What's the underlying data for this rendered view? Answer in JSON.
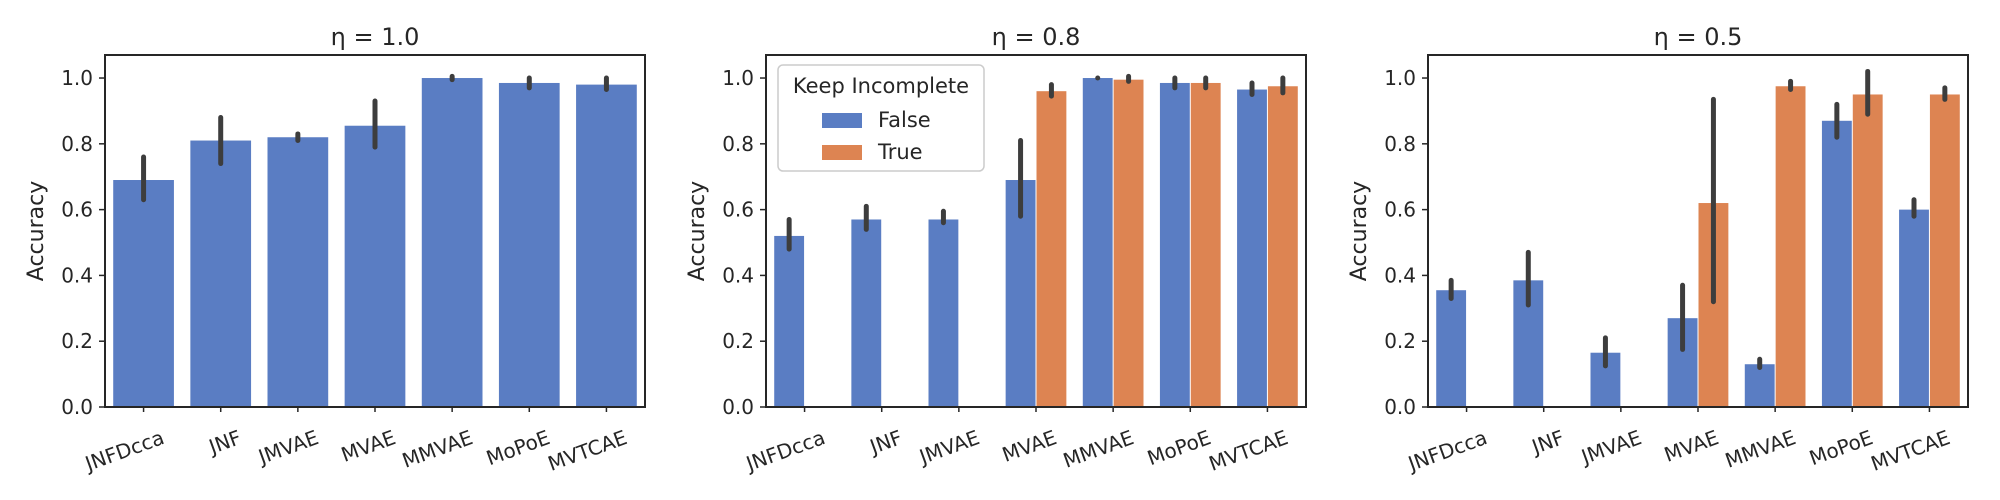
{
  "chart_data": [
    {
      "type": "bar",
      "title": "η = 1.0",
      "ylabel": "Accuracy",
      "xlabel": "",
      "ylim": [
        0,
        1.07
      ],
      "yticks": [
        "0.0",
        "0.2",
        "0.4",
        "0.6",
        "0.8",
        "1.0"
      ],
      "ytick_values": [
        0,
        0.2,
        0.4,
        0.6,
        0.8,
        1.0
      ],
      "categories": [
        "JNFDcca",
        "JNF",
        "JMVAE",
        "MVAE",
        "MMVAE",
        "MoPoE",
        "MVTCAE"
      ],
      "grid": false,
      "legend": null,
      "series": [
        {
          "color": "#5a7dc3",
          "values": [
            0.69,
            0.81,
            0.82,
            0.855,
            1.0,
            0.985,
            0.98
          ],
          "err_low": [
            0.63,
            0.74,
            0.81,
            0.79,
            0.995,
            0.97,
            0.965
          ],
          "err_high": [
            0.76,
            0.88,
            0.83,
            0.93,
            1.005,
            1.0,
            1.0
          ]
        }
      ]
    },
    {
      "type": "bar",
      "title": "η = 0.8",
      "ylabel": "Accuracy",
      "xlabel": "",
      "ylim": [
        0,
        1.07
      ],
      "yticks": [
        "0.0",
        "0.2",
        "0.4",
        "0.6",
        "0.8",
        "1.0"
      ],
      "ytick_values": [
        0,
        0.2,
        0.4,
        0.6,
        0.8,
        1.0
      ],
      "categories": [
        "JNFDcca",
        "JNF",
        "JMVAE",
        "MVAE",
        "MMVAE",
        "MoPoE",
        "MVTCAE"
      ],
      "grid": false,
      "legend": {
        "title": "Keep Incomplete",
        "placement": "top-left"
      },
      "series": [
        {
          "name": "False",
          "color": "#5a7dc3",
          "values": [
            0.52,
            0.57,
            0.57,
            0.69,
            1.0,
            0.985,
            0.965
          ],
          "err_low": [
            0.48,
            0.54,
            0.56,
            0.58,
            1.0,
            0.97,
            0.95
          ],
          "err_high": [
            0.57,
            0.61,
            0.595,
            0.81,
            1.0,
            1.0,
            0.985
          ]
        },
        {
          "name": "True",
          "color": "#dd8452",
          "values": [
            null,
            null,
            null,
            0.96,
            0.995,
            0.985,
            0.975
          ],
          "err_low": [
            null,
            null,
            null,
            0.945,
            0.99,
            0.97,
            0.955
          ],
          "err_high": [
            null,
            null,
            null,
            0.98,
            1.005,
            1.0,
            1.0
          ]
        }
      ]
    },
    {
      "type": "bar",
      "title": "η = 0.5",
      "ylabel": "Accuracy",
      "xlabel": "",
      "ylim": [
        0,
        1.07
      ],
      "yticks": [
        "0.0",
        "0.2",
        "0.4",
        "0.6",
        "0.8",
        "1.0"
      ],
      "ytick_values": [
        0,
        0.2,
        0.4,
        0.6,
        0.8,
        1.0
      ],
      "categories": [
        "JNFDcca",
        "JNF",
        "JMVAE",
        "MVAE",
        "MMVAE",
        "MoPoE",
        "MVTCAE"
      ],
      "grid": false,
      "legend": null,
      "series": [
        {
          "name": "False",
          "color": "#5a7dc3",
          "values": [
            0.355,
            0.385,
            0.165,
            0.27,
            0.13,
            0.87,
            0.6
          ],
          "err_low": [
            0.33,
            0.31,
            0.125,
            0.175,
            0.12,
            0.82,
            0.58
          ],
          "err_high": [
            0.385,
            0.47,
            0.21,
            0.37,
            0.145,
            0.92,
            0.63
          ]
        },
        {
          "name": "True",
          "color": "#dd8452",
          "values": [
            null,
            null,
            null,
            0.62,
            0.975,
            0.95,
            0.95
          ],
          "err_low": [
            null,
            null,
            null,
            0.32,
            0.965,
            0.89,
            0.935
          ],
          "err_high": [
            null,
            null,
            null,
            0.935,
            0.99,
            1.02,
            0.97
          ]
        }
      ]
    }
  ]
}
